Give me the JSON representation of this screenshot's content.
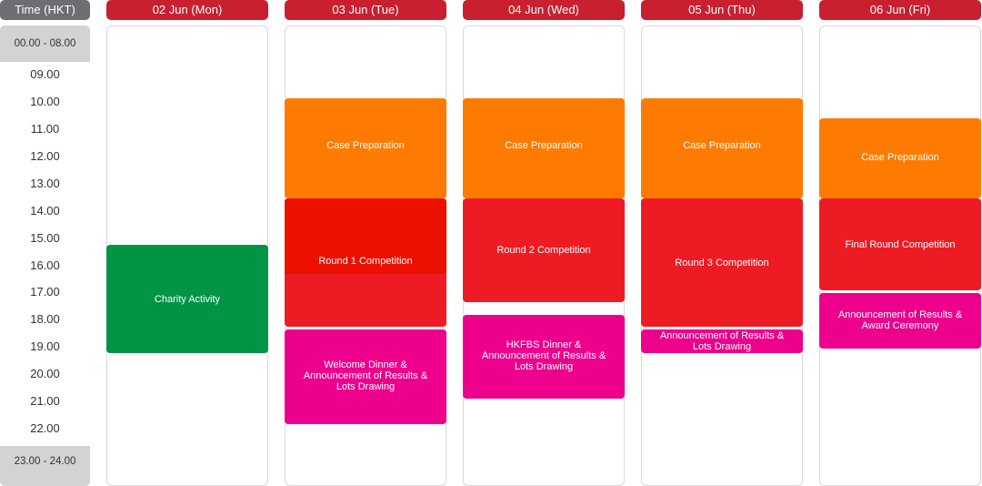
{
  "header": {
    "time_label": "Time (HKT)",
    "days": [
      "02 Jun (Mon)",
      "03 Jun (Tue)",
      "04 Jun (Wed)",
      "05 Jun (Thu)",
      "06 Jun (Fri)"
    ]
  },
  "time_slots": [
    "00.00 - 08.00",
    "09.00",
    "10.00",
    "11.00",
    "12.00",
    "13.00",
    "14.00",
    "15.00",
    "16.00",
    "17.00",
    "18.00",
    "19.00",
    "20.00",
    "21.00",
    "22.00",
    "23.00 - 24.00"
  ],
  "colors": {
    "header_day": "#c8202f",
    "header_time": "#6d6e71",
    "case_preparation": "#ff7a00",
    "competition": "#ed1c24",
    "charity": "#009444",
    "announcement": "#ec008c"
  },
  "events": {
    "mon_charity": "Charity Activity",
    "tue_case": "Case Preparation",
    "tue_round": "Round 1 Competition",
    "tue_dinner_1": "Welcome Dinner &",
    "tue_dinner_2": "Announcement of Results &",
    "tue_dinner_3": "Lots Drawing",
    "wed_case": "Case Preparation",
    "wed_round": "Round 2 Competition",
    "wed_dinner_1": "HKFBS Dinner &",
    "wed_dinner_2": "Announcement of Results &",
    "wed_dinner_3": "Lots Drawing",
    "thu_case": "Case Preparation",
    "thu_round": "Round 3 Competition",
    "thu_ann_1": "Announcement of Results &",
    "thu_ann_2": "Lots Drawing",
    "fri_case": "Case Preparation",
    "fri_round": "Final Round Competition",
    "fri_ann_1": "Announcement of Results &",
    "fri_ann_2": "Award Ceremony"
  }
}
